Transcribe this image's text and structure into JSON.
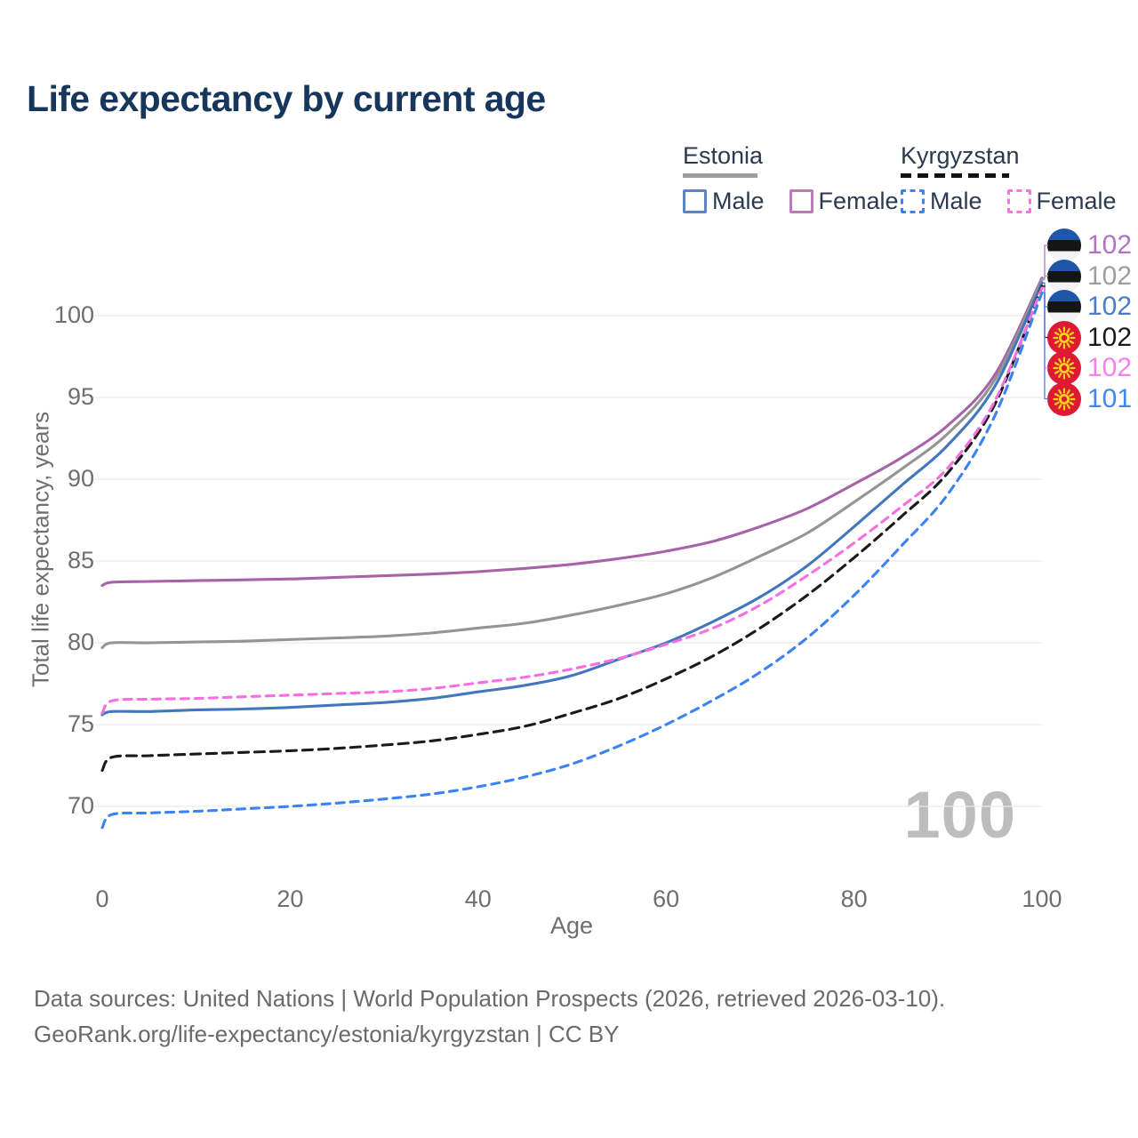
{
  "title": "Life expectancy by current age",
  "legend": {
    "groups": [
      {
        "label": "Estonia",
        "line_style": "solid",
        "line_color": "#9e9e9e",
        "items": [
          {
            "label": "Male",
            "color": "#4377bb",
            "style": "solid"
          },
          {
            "label": "Female",
            "color": "#a763a8",
            "style": "solid"
          }
        ]
      },
      {
        "label": "Kyrgyzstan",
        "line_style": "dashed",
        "line_color": "#1a1a1a",
        "items": [
          {
            "label": "Male",
            "color": "#3b82f6",
            "style": "dashed"
          },
          {
            "label": "Female",
            "color": "#f76ee0",
            "style": "dashed"
          }
        ]
      }
    ]
  },
  "watermark": {
    "text": "100"
  },
  "chart_data": {
    "type": "line",
    "title": "Life expectancy by current age",
    "xlabel": "Age",
    "ylabel": "Total life expectancy, years",
    "xlim": [
      0,
      100
    ],
    "ylim": [
      70,
      100
    ],
    "grid": "horizontal",
    "legend_position": "top-right",
    "xticks": [
      0,
      20,
      40,
      60,
      80,
      100
    ],
    "yticks": [
      70,
      75,
      80,
      85,
      90,
      95,
      100
    ],
    "x": [
      0,
      1,
      5,
      10,
      15,
      20,
      25,
      30,
      35,
      40,
      45,
      50,
      55,
      60,
      65,
      70,
      75,
      80,
      85,
      90,
      95,
      100
    ],
    "series": [
      {
        "name": "Estonia Female",
        "country": "Estonia",
        "sex": "Female",
        "color": "#a763a8",
        "dash": "solid",
        "values": [
          83.5,
          83.7,
          83.75,
          83.8,
          83.85,
          83.9,
          84.0,
          84.1,
          84.2,
          84.35,
          84.55,
          84.8,
          85.15,
          85.6,
          86.2,
          87.1,
          88.2,
          89.7,
          91.3,
          93.3,
          96.4,
          102.3
        ]
      },
      {
        "name": "Estonia Both sexes",
        "country": "Estonia",
        "sex": "Both",
        "color": "#949494",
        "dash": "solid",
        "values": [
          79.7,
          80.0,
          80.0,
          80.05,
          80.1,
          80.2,
          80.3,
          80.4,
          80.6,
          80.9,
          81.2,
          81.7,
          82.3,
          83.0,
          84.0,
          85.3,
          86.7,
          88.6,
          90.6,
          92.8,
          96.1,
          102.2
        ]
      },
      {
        "name": "Estonia Male",
        "country": "Estonia",
        "sex": "Male",
        "color": "#4377bb",
        "dash": "solid",
        "values": [
          75.6,
          75.8,
          75.8,
          75.9,
          75.95,
          76.05,
          76.2,
          76.35,
          76.6,
          77.0,
          77.4,
          78.0,
          79.0,
          80.0,
          81.3,
          82.8,
          84.7,
          87.1,
          89.6,
          92.1,
          95.7,
          102.0
        ]
      },
      {
        "name": "Kyrgyzstan Both sexes",
        "country": "Kyrgyzstan",
        "sex": "Both",
        "color": "#1a1a1a",
        "dash": "dashed",
        "values": [
          72.2,
          73.0,
          73.1,
          73.2,
          73.3,
          73.4,
          73.55,
          73.75,
          74.0,
          74.4,
          74.9,
          75.7,
          76.6,
          77.8,
          79.2,
          80.9,
          82.9,
          85.2,
          87.7,
          90.4,
          94.6,
          101.8
        ]
      },
      {
        "name": "Kyrgyzstan Female",
        "country": "Kyrgyzstan",
        "sex": "Female",
        "color": "#f76ee0",
        "dash": "dashed",
        "values": [
          75.7,
          76.45,
          76.55,
          76.6,
          76.7,
          76.8,
          76.9,
          77.0,
          77.2,
          77.55,
          77.9,
          78.4,
          79.05,
          79.9,
          80.9,
          82.3,
          84.1,
          86.1,
          88.3,
          90.7,
          94.8,
          101.7
        ]
      },
      {
        "name": "Kyrgyzstan Male",
        "country": "Kyrgyzstan",
        "sex": "Male",
        "color": "#3b82f6",
        "dash": "dashed",
        "values": [
          68.7,
          69.5,
          69.6,
          69.7,
          69.85,
          70.0,
          70.2,
          70.45,
          70.75,
          71.2,
          71.8,
          72.6,
          73.7,
          75.0,
          76.5,
          78.2,
          80.3,
          82.9,
          85.9,
          89.1,
          93.9,
          101.4
        ]
      }
    ],
    "end_labels": [
      {
        "text": "102",
        "flag": "estonia-flag",
        "color": "#b273c4",
        "series": 0
      },
      {
        "text": "102",
        "flag": "estonia-flag",
        "color": "#9e9e9e",
        "series": 1
      },
      {
        "text": "102",
        "flag": "estonia-flag",
        "color": "#4a7cc9",
        "series": 2
      },
      {
        "text": "102",
        "flag": "kyrgyzstan-flag",
        "color": "#1a1a1a",
        "series": 3
      },
      {
        "text": "102",
        "flag": "kyrgyzstan-flag",
        "color": "#fb7fe8",
        "series": 4
      },
      {
        "text": "101",
        "flag": "kyrgyzstan-flag",
        "color": "#4286f5",
        "series": 5
      }
    ]
  },
  "footer": {
    "line1": "Data sources: United Nations | World Population Prospects (2026, retrieved 2026-03-10).",
    "line2": "GeoRank.org/life-expectancy/estonia/kyrgyzstan | CC BY"
  }
}
